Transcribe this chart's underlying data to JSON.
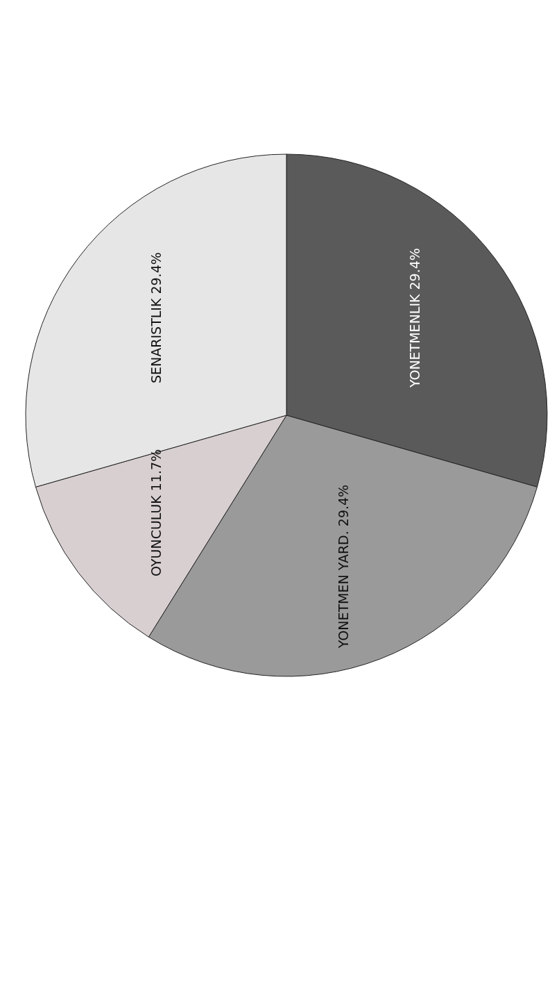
{
  "chart_data": {
    "type": "pie",
    "categories": [
      "YONETMENLIK",
      "YONETMEN YARD.",
      "OYUNCULUK",
      "SENARISTLIK"
    ],
    "values": [
      29.4,
      29.4,
      11.7,
      29.4
    ],
    "value_labels": [
      "29.4%",
      "29.4%",
      "11.7%",
      "29.4%"
    ],
    "colors": [
      "#5a5a5a",
      "#9a9a9a",
      "#d8cfd0",
      "#e6e6e6"
    ]
  }
}
